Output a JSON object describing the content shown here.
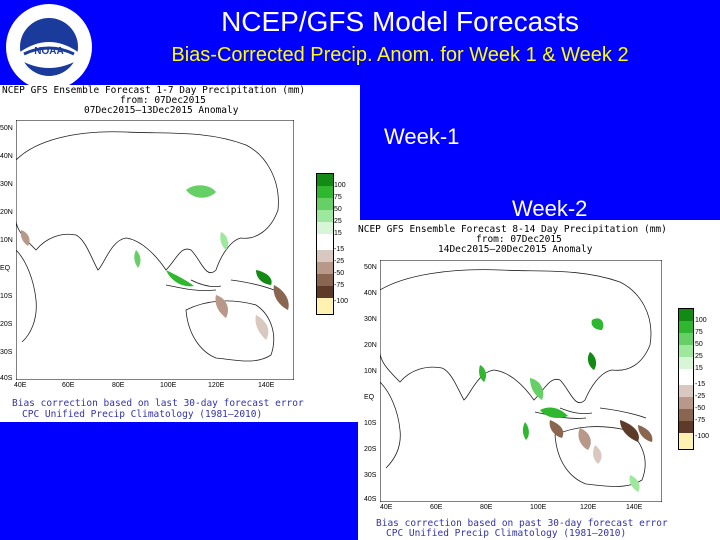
{
  "header": {
    "title": "NCEP/GFS Model Forecasts",
    "subtitle": "Bias-Corrected Precip. Anom. for Week 1 & Week 2"
  },
  "labels": {
    "week1": "Week-1",
    "week2": "Week-2"
  },
  "logo": {
    "center": "NOAA",
    "ring": "NATIONAL OCEANIC AND ATMOSPHERIC ADMINISTRATION"
  },
  "map1": {
    "title_lines": [
      "NCEP GFS Ensemble Forecast 1-7 Day Precipitation (mm)",
      "from: 07Dec2015",
      "07Dec2015—13Dec2015 Anomaly"
    ],
    "lat_labels": [
      "50N",
      "40N",
      "30N",
      "20N",
      "10N",
      "EQ",
      "10S",
      "20S",
      "30S",
      "40S"
    ],
    "lon_labels": [
      "40E",
      "60E",
      "80E",
      "100E",
      "120E",
      "140E"
    ],
    "legend": [
      "100",
      "75",
      "50",
      "25",
      "15",
      "-15",
      "-25",
      "-50",
      "-75",
      "-100"
    ],
    "note_lines": [
      "Bias correction based on last 30-day forecast error",
      "CPC Unified Precip Climatology (1981—2010)"
    ]
  },
  "map2": {
    "title_lines": [
      "NCEP GFS Ensemble Forecast 8-14 Day Precipitation (mm)",
      "from: 07Dec2015",
      "14Dec2015—20Dec2015 Anomaly"
    ],
    "lat_labels": [
      "50N",
      "40N",
      "30N",
      "20N",
      "10N",
      "EQ",
      "10S",
      "20S",
      "30S",
      "40S"
    ],
    "lon_labels": [
      "40E",
      "60E",
      "80E",
      "100E",
      "120E",
      "140E"
    ],
    "legend": [
      "100",
      "75",
      "50",
      "25",
      "15",
      "-15",
      "-25",
      "-50",
      "-75",
      "-100"
    ],
    "note_lines": [
      "Bias correction based on past 30-day forecast error",
      "CPC Unified Precip Climatology (1981—2010)"
    ]
  },
  "legend_colors": [
    "#138a13",
    "#2fb82f",
    "#66d066",
    "#9de89d",
    "#d8f5d8",
    "#ffffff",
    "#d8c8c0",
    "#b89888",
    "#8a6650",
    "#5e3a28",
    "#fff2b0"
  ]
}
